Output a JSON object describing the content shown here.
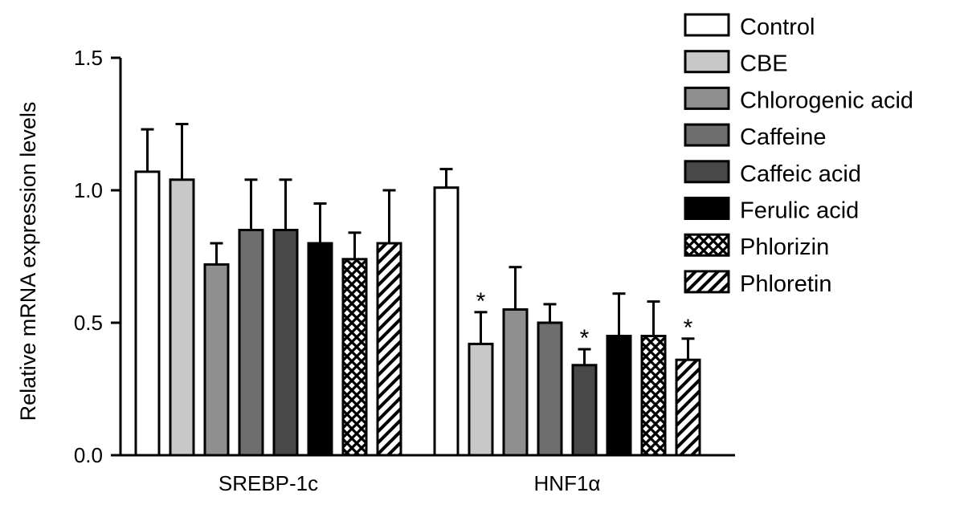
{
  "chart_data": {
    "type": "bar",
    "ylabel": "Relative mRNA expression levels",
    "ylim": [
      0,
      1.5
    ],
    "yticks": [
      "0.0",
      "0.5",
      "1.0",
      "1.5"
    ],
    "categories": [
      "SREBP-1c",
      "HNF1α"
    ],
    "grid": false,
    "legend_position": "top-right",
    "series": [
      {
        "name": "Control",
        "fill": "white",
        "color": "#ffffff",
        "values": [
          1.07,
          1.01
        ],
        "errors": [
          0.16,
          0.07
        ],
        "significant": [
          false,
          false
        ]
      },
      {
        "name": "CBE",
        "fill": "solid",
        "color": "#c8c8c8",
        "values": [
          1.04,
          0.42
        ],
        "errors": [
          0.21,
          0.12
        ],
        "significant": [
          false,
          true
        ]
      },
      {
        "name": "Chlorogenic acid",
        "fill": "solid",
        "color": "#8f8f8f",
        "values": [
          0.72,
          0.55
        ],
        "errors": [
          0.08,
          0.16
        ],
        "significant": [
          false,
          false
        ]
      },
      {
        "name": "Caffeine",
        "fill": "solid",
        "color": "#6e6e6e",
        "values": [
          0.85,
          0.5
        ],
        "errors": [
          0.19,
          0.07
        ],
        "significant": [
          false,
          false
        ]
      },
      {
        "name": "Caffeic acid",
        "fill": "solid",
        "color": "#484848",
        "values": [
          0.85,
          0.34
        ],
        "errors": [
          0.19,
          0.06
        ],
        "significant": [
          false,
          true
        ]
      },
      {
        "name": "Ferulic acid",
        "fill": "solid",
        "color": "#000000",
        "values": [
          0.8,
          0.45
        ],
        "errors": [
          0.15,
          0.16
        ],
        "significant": [
          false,
          false
        ]
      },
      {
        "name": "Phlorizin",
        "fill": "crosshatch",
        "color": "#000000",
        "values": [
          0.74,
          0.45
        ],
        "errors": [
          0.1,
          0.13
        ],
        "significant": [
          false,
          false
        ]
      },
      {
        "name": "Phloretin",
        "fill": "diagonal",
        "color": "#000000",
        "values": [
          0.8,
          0.36
        ],
        "errors": [
          0.2,
          0.08
        ],
        "significant": [
          false,
          true
        ]
      }
    ],
    "significance_marker": "*"
  }
}
